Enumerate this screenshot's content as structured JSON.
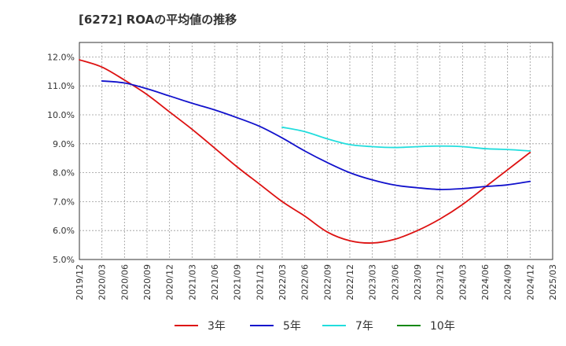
{
  "chart_data": {
    "type": "line",
    "title": "[6272]  ROAの平均値の推移",
    "xlabel": "",
    "ylabel": "",
    "ylim": [
      5.0,
      12.5
    ],
    "yticks": [
      5.0,
      6.0,
      7.0,
      8.0,
      9.0,
      10.0,
      11.0,
      12.0
    ],
    "ytick_labels": [
      "5.0%",
      "6.0%",
      "7.0%",
      "8.0%",
      "9.0%",
      "10.0%",
      "11.0%",
      "12.0%"
    ],
    "xticks": [
      "2019/12",
      "2020/03",
      "2020/06",
      "2020/09",
      "2020/12",
      "2021/03",
      "2021/06",
      "2021/09",
      "2021/12",
      "2022/03",
      "2022/06",
      "2022/09",
      "2022/12",
      "2023/03",
      "2023/06",
      "2023/09",
      "2023/12",
      "2024/03",
      "2024/06",
      "2024/09",
      "2024/12",
      "2025/03"
    ],
    "grid": true,
    "legend_position": "bottom",
    "series": [
      {
        "name": "3年",
        "color": "#dd1111",
        "values": [
          {
            "x": "2019/12",
            "y": 11.9
          },
          {
            "x": "2020/03",
            "y": 11.65
          },
          {
            "x": "2020/06",
            "y": 11.2
          },
          {
            "x": "2020/09",
            "y": 10.7
          },
          {
            "x": "2020/12",
            "y": 10.1
          },
          {
            "x": "2021/03",
            "y": 9.5
          },
          {
            "x": "2021/06",
            "y": 8.85
          },
          {
            "x": "2021/09",
            "y": 8.2
          },
          {
            "x": "2021/12",
            "y": 7.6
          },
          {
            "x": "2022/03",
            "y": 7.0
          },
          {
            "x": "2022/06",
            "y": 6.5
          },
          {
            "x": "2022/09",
            "y": 5.95
          },
          {
            "x": "2022/12",
            "y": 5.65
          },
          {
            "x": "2023/03",
            "y": 5.57
          },
          {
            "x": "2023/06",
            "y": 5.7
          },
          {
            "x": "2023/09",
            "y": 6.0
          },
          {
            "x": "2023/12",
            "y": 6.4
          },
          {
            "x": "2024/03",
            "y": 6.9
          },
          {
            "x": "2024/06",
            "y": 7.5
          },
          {
            "x": "2024/09",
            "y": 8.1
          },
          {
            "x": "2024/12",
            "y": 8.7
          }
        ]
      },
      {
        "name": "5年",
        "color": "#1111cc",
        "values": [
          {
            "x": "2020/03",
            "y": 11.17
          },
          {
            "x": "2020/06",
            "y": 11.1
          },
          {
            "x": "2020/09",
            "y": 10.9
          },
          {
            "x": "2020/12",
            "y": 10.65
          },
          {
            "x": "2021/03",
            "y": 10.4
          },
          {
            "x": "2021/06",
            "y": 10.17
          },
          {
            "x": "2021/09",
            "y": 9.9
          },
          {
            "x": "2021/12",
            "y": 9.6
          },
          {
            "x": "2022/03",
            "y": 9.2
          },
          {
            "x": "2022/06",
            "y": 8.75
          },
          {
            "x": "2022/09",
            "y": 8.35
          },
          {
            "x": "2022/12",
            "y": 8.0
          },
          {
            "x": "2023/03",
            "y": 7.75
          },
          {
            "x": "2023/06",
            "y": 7.57
          },
          {
            "x": "2023/09",
            "y": 7.48
          },
          {
            "x": "2023/12",
            "y": 7.42
          },
          {
            "x": "2024/03",
            "y": 7.45
          },
          {
            "x": "2024/06",
            "y": 7.52
          },
          {
            "x": "2024/09",
            "y": 7.58
          },
          {
            "x": "2024/12",
            "y": 7.7
          }
        ]
      },
      {
        "name": "7年",
        "color": "#22dddd",
        "values": [
          {
            "x": "2022/03",
            "y": 9.57
          },
          {
            "x": "2022/06",
            "y": 9.42
          },
          {
            "x": "2022/09",
            "y": 9.17
          },
          {
            "x": "2022/12",
            "y": 8.97
          },
          {
            "x": "2023/03",
            "y": 8.9
          },
          {
            "x": "2023/06",
            "y": 8.87
          },
          {
            "x": "2023/09",
            "y": 8.9
          },
          {
            "x": "2023/12",
            "y": 8.92
          },
          {
            "x": "2024/03",
            "y": 8.9
          },
          {
            "x": "2024/06",
            "y": 8.83
          },
          {
            "x": "2024/09",
            "y": 8.8
          },
          {
            "x": "2024/12",
            "y": 8.75
          }
        ]
      },
      {
        "name": "10年",
        "color": "#118811",
        "values": []
      }
    ]
  }
}
